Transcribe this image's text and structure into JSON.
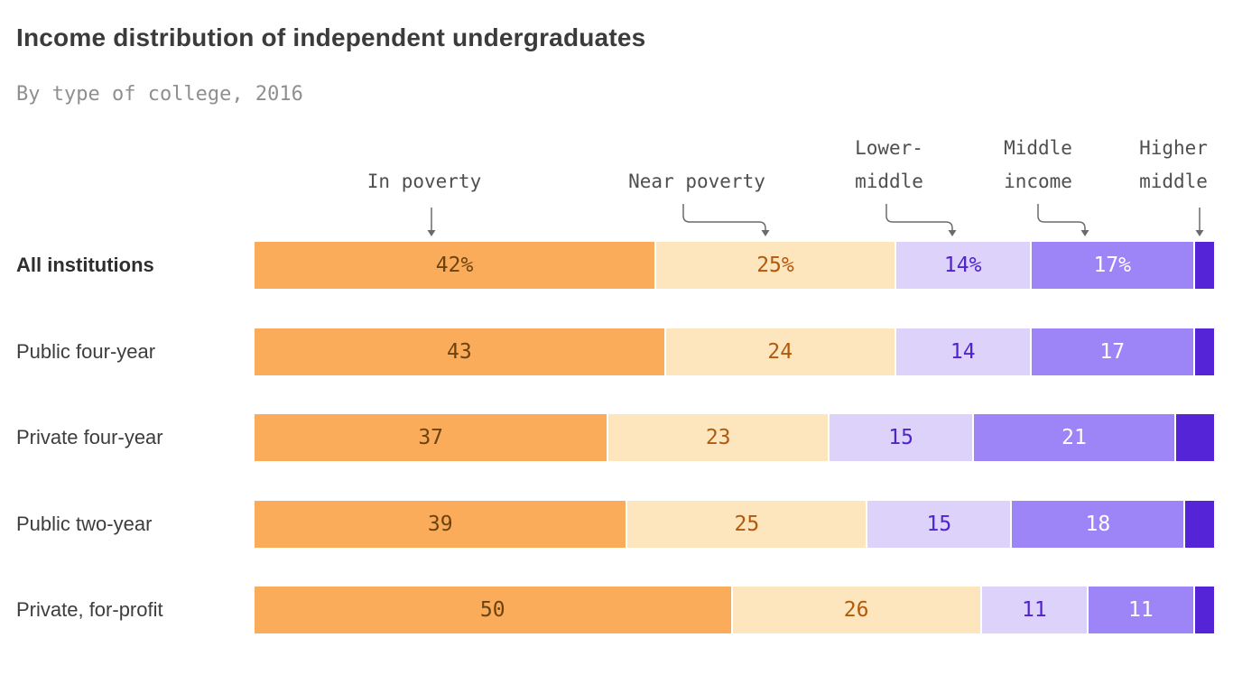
{
  "chart_data": {
    "type": "bar",
    "variant": "horizontal-stacked",
    "title": "Income distribution of independent undergraduates",
    "subtitle": "By type of college, 2016",
    "unit": "percent",
    "xlim": [
      0,
      100
    ],
    "grid": false,
    "legend_position": "top-annotations-with-arrows",
    "series": [
      {
        "name": "In poverty",
        "display_lines": [
          "In poverty"
        ],
        "color": "#FAAC5B",
        "label_color": "#6B430F"
      },
      {
        "name": "Near poverty",
        "display_lines": [
          "Near poverty"
        ],
        "color": "#FDE5BE",
        "label_color": "#B25A0C"
      },
      {
        "name": "Lower-middle",
        "display_lines": [
          "Lower-",
          "middle"
        ],
        "color": "#DDD2F9",
        "label_color": "#4F23CE"
      },
      {
        "name": "Middle income",
        "display_lines": [
          "Middle",
          "income"
        ],
        "color": "#9D85F7",
        "label_color": "#FFFFFF"
      },
      {
        "name": "Higher middle",
        "display_lines": [
          "Higher",
          "middle"
        ],
        "color": "#5424D6",
        "label_color": "#FFFFFF"
      }
    ],
    "categories": [
      "All institutions",
      "Public four-year",
      "Private four-year",
      "Public two-year",
      "Private, for-profit"
    ],
    "rows": [
      {
        "label": "All institutions",
        "bold": true,
        "values": [
          42,
          25,
          14,
          17,
          2
        ],
        "segment_labels": [
          "42%",
          "25%",
          "14%",
          "17%",
          ""
        ]
      },
      {
        "label": "Public four-year",
        "bold": false,
        "values": [
          43,
          24,
          14,
          17,
          2
        ],
        "segment_labels": [
          "43",
          "24",
          "14",
          "17",
          ""
        ]
      },
      {
        "label": "Private four-year",
        "bold": false,
        "values": [
          37,
          23,
          15,
          21,
          4
        ],
        "segment_labels": [
          "37",
          "23",
          "15",
          "21",
          ""
        ]
      },
      {
        "label": "Public two-year",
        "bold": false,
        "values": [
          39,
          25,
          15,
          18,
          3
        ],
        "segment_labels": [
          "39",
          "25",
          "15",
          "18",
          ""
        ]
      },
      {
        "label": "Private, for-profit",
        "bold": false,
        "values": [
          50,
          26,
          11,
          11,
          2
        ],
        "segment_labels": [
          "50",
          "26",
          "11",
          "11",
          ""
        ]
      }
    ],
    "annotation_arrow_color": "#6b6b6b"
  }
}
